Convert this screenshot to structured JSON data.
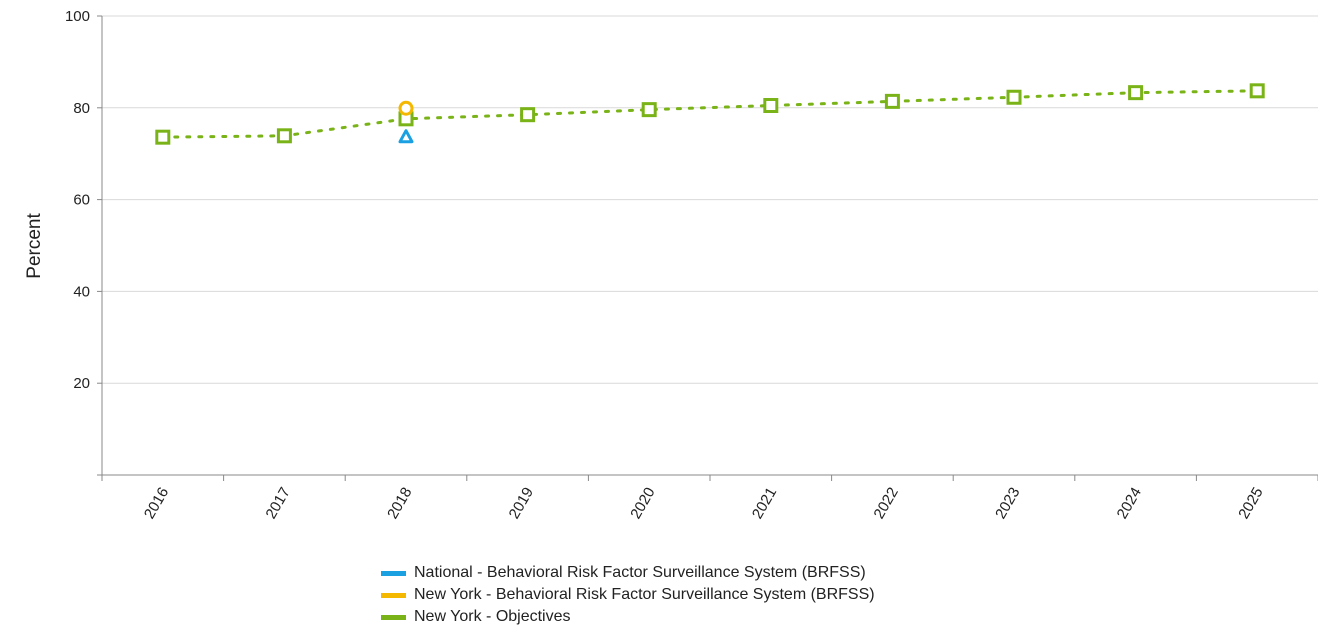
{
  "chart_data": {
    "type": "line",
    "title": "",
    "xlabel": "",
    "ylabel": "Percent",
    "categories": [
      "2016",
      "2017",
      "2018",
      "2019",
      "2020",
      "2021",
      "2022",
      "2023",
      "2024",
      "2025"
    ],
    "yticks": [
      "20",
      "40",
      "60",
      "80",
      "100"
    ],
    "ylim": [
      0,
      100
    ],
    "grid": "horizontal",
    "legend_position": "bottom",
    "series": [
      {
        "name": "National - Behavioral Risk Factor Surveillance System (BRFSS)",
        "color": "#1BA1E2",
        "marker": "triangle",
        "line": "none",
        "points": [
          {
            "x": "2018",
            "y": 73.7
          }
        ]
      },
      {
        "name": "New York - Behavioral Risk Factor Surveillance System (BRFSS)",
        "color": "#F5B800",
        "marker": "circle",
        "line": "none",
        "points": [
          {
            "x": "2018",
            "y": 79.9
          }
        ]
      },
      {
        "name": "New York - Objectives",
        "color": "#7AB317",
        "marker": "square",
        "line": "dotted",
        "points": [
          {
            "x": "2016",
            "y": 73.6
          },
          {
            "x": "2017",
            "y": 73.9
          },
          {
            "x": "2018",
            "y": 77.6
          },
          {
            "x": "2019",
            "y": 78.5
          },
          {
            "x": "2020",
            "y": 79.6
          },
          {
            "x": "2021",
            "y": 80.5
          },
          {
            "x": "2022",
            "y": 81.4
          },
          {
            "x": "2023",
            "y": 82.3
          },
          {
            "x": "2024",
            "y": 83.3
          },
          {
            "x": "2025",
            "y": 83.7
          }
        ]
      }
    ]
  }
}
